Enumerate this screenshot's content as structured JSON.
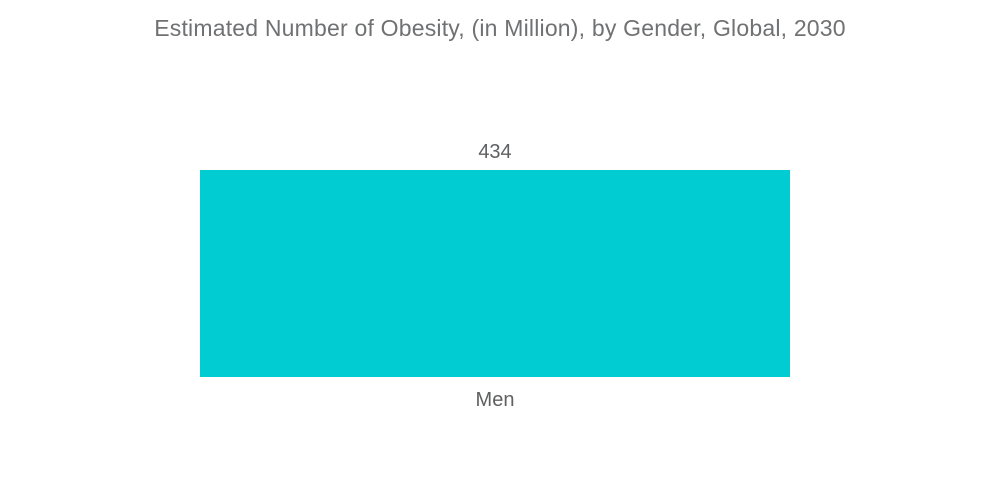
{
  "chart_data": {
    "type": "bar",
    "orientation": "vertical",
    "title": "Estimated Number of Obesity, (in Million), by Gender, Global, 2030",
    "categories": [
      "Men"
    ],
    "series": [
      {
        "name": "Estimated Number of Obesity (in Million)",
        "values": [
          434
        ]
      }
    ],
    "values": [
      434
    ],
    "value_labels": [
      "434"
    ],
    "xlabel": "",
    "ylabel": "",
    "ylim": [
      0,
      434
    ],
    "grid": false,
    "axes_visible": false,
    "legend_position": "none",
    "bar_color": "#00CCD2",
    "title_color": "#707173",
    "label_color": "#5F6062",
    "background_color": "#FFFFFF"
  }
}
